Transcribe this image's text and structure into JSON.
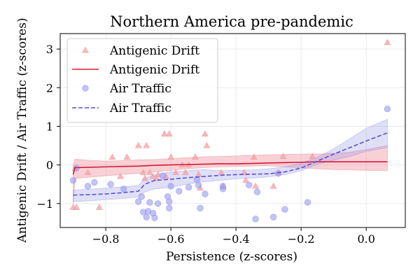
{
  "chart_data": {
    "type": "scatter",
    "title": "Northern America pre-pandemic",
    "xlabel": "Persistence (z-scores)",
    "ylabel": "Antigenic Drift / Air Traffic (z-scores)",
    "xlim": [
      -0.94,
      0.12
    ],
    "ylim": [
      -1.62,
      3.4
    ],
    "x_ticks": [
      -0.8,
      -0.6,
      -0.4,
      -0.2,
      0.0
    ],
    "x_tick_labels": [
      "−0.8",
      "−0.6",
      "−0.4",
      "−0.2",
      "0.0"
    ],
    "y_ticks": [
      -1,
      0,
      1,
      2,
      3
    ],
    "y_tick_labels": [
      "−1",
      "0",
      "1",
      "2",
      "3"
    ],
    "grid": true,
    "legend_position": "upper-left",
    "legend": [
      {
        "label": "Antigenic Drift",
        "kind": "triangle-marker"
      },
      {
        "label": "Antigenic Drift",
        "kind": "solid-line"
      },
      {
        "label": "Air Traffic",
        "kind": "circle-marker"
      },
      {
        "label": "Air Traffic",
        "kind": "dashed-line"
      }
    ],
    "colors": {
      "drift_marker": "#f4a0a6",
      "drift_line": "#d7193a",
      "drift_band": "#e8707e",
      "air_marker": "#9b9bf2",
      "air_line": "#5a4fd6",
      "air_band": "#8c8ce6"
    },
    "series": [
      {
        "name": "Antigenic Drift",
        "kind": "scatter",
        "points": [
          [
            -0.9,
            -1.1
          ],
          [
            -0.89,
            -1.1
          ],
          [
            -0.895,
            -0.1
          ],
          [
            -0.855,
            -0.2
          ],
          [
            -0.82,
            -1.1
          ],
          [
            -0.78,
            0.2
          ],
          [
            -0.755,
            -0.3
          ],
          [
            -0.735,
            0.2
          ],
          [
            -0.7,
            0.5
          ],
          [
            -0.685,
            -0.2
          ],
          [
            -0.68,
            -0.35
          ],
          [
            -0.675,
            0.5
          ],
          [
            -0.665,
            -0.2
          ],
          [
            -0.655,
            -0.3
          ],
          [
            -0.645,
            -0.35
          ],
          [
            -0.64,
            -0.25
          ],
          [
            -0.62,
            0.8
          ],
          [
            -0.615,
            -0.3
          ],
          [
            -0.605,
            0.8
          ],
          [
            -0.6,
            0.2
          ],
          [
            -0.585,
            -0.2
          ],
          [
            -0.565,
            0.0
          ],
          [
            -0.555,
            -0.2
          ],
          [
            -0.545,
            0.0
          ],
          [
            -0.525,
            0.2
          ],
          [
            -0.515,
            -0.25
          ],
          [
            -0.51,
            -0.6
          ],
          [
            -0.495,
            0.8
          ],
          [
            -0.49,
            0.5
          ],
          [
            -0.445,
            -0.2
          ],
          [
            -0.44,
            -0.55
          ],
          [
            -0.375,
            -0.2
          ],
          [
            -0.37,
            -0.4
          ],
          [
            -0.345,
            0.2
          ],
          [
            -0.34,
            -0.55
          ],
          [
            -0.285,
            -0.55
          ],
          [
            -0.27,
            -0.2
          ],
          [
            -0.255,
            0.22
          ],
          [
            -0.165,
            0.22
          ],
          [
            0.065,
            3.17
          ]
        ]
      },
      {
        "name": "Antigenic Drift",
        "kind": "trend",
        "x": [
          -0.9,
          -0.895,
          -0.85,
          -0.8,
          -0.75,
          -0.7,
          -0.65,
          -0.6,
          -0.55,
          -0.5,
          -0.45,
          -0.4,
          -0.35,
          -0.3,
          -0.25,
          -0.2,
          -0.15,
          -0.1,
          -0.05,
          0.0,
          0.065
        ],
        "y": [
          -0.25,
          -0.07,
          -0.06,
          -0.05,
          -0.04,
          -0.03,
          -0.01,
          0.0,
          0.01,
          0.02,
          0.03,
          0.03,
          0.04,
          0.05,
          0.06,
          0.07,
          0.08,
          0.08,
          0.08,
          0.08,
          0.08
        ],
        "lower": [
          -1.05,
          -0.35,
          -0.32,
          -0.28,
          -0.25,
          -0.22,
          -0.18,
          -0.14,
          -0.1,
          -0.07,
          -0.05,
          -0.04,
          -0.03,
          -0.02,
          -0.05,
          -0.08,
          -0.1,
          -0.12,
          -0.13,
          -0.14,
          -0.15
        ],
        "upper": [
          0.0,
          0.15,
          0.12,
          0.1,
          0.11,
          0.13,
          0.14,
          0.16,
          0.19,
          0.21,
          0.22,
          0.23,
          0.25,
          0.26,
          0.27,
          0.28,
          0.28,
          0.3,
          0.33,
          0.4,
          0.5
        ]
      },
      {
        "name": "Air Traffic",
        "kind": "scatter",
        "points": [
          [
            -0.9,
            -0.4
          ],
          [
            -0.89,
            -0.08
          ],
          [
            -0.855,
            -0.55
          ],
          [
            -0.835,
            -0.45
          ],
          [
            -0.785,
            -0.5
          ],
          [
            -0.745,
            -0.62
          ],
          [
            -0.7,
            -0.95
          ],
          [
            -0.69,
            -0.82
          ],
          [
            -0.685,
            -1.22
          ],
          [
            -0.675,
            -1.35
          ],
          [
            -0.67,
            -1.2
          ],
          [
            -0.665,
            -0.97
          ],
          [
            -0.655,
            -1.25
          ],
          [
            -0.65,
            -1.37
          ],
          [
            -0.64,
            -1.0
          ],
          [
            -0.625,
            -0.28
          ],
          [
            -0.61,
            -0.82
          ],
          [
            -0.605,
            -0.95
          ],
          [
            -0.605,
            -1.12
          ],
          [
            -0.6,
            -0.55
          ],
          [
            -0.575,
            -0.68
          ],
          [
            -0.545,
            -0.58
          ],
          [
            -0.52,
            -0.38
          ],
          [
            -0.515,
            -0.53
          ],
          [
            -0.51,
            -1.12
          ],
          [
            -0.495,
            -0.75
          ],
          [
            -0.44,
            -0.55
          ],
          [
            -0.44,
            -0.62
          ],
          [
            -0.36,
            -0.52
          ],
          [
            -0.34,
            -1.4
          ],
          [
            -0.335,
            -0.7
          ],
          [
            -0.285,
            -1.35
          ],
          [
            -0.27,
            -0.22
          ],
          [
            -0.25,
            -1.15
          ],
          [
            -0.18,
            -0.97
          ],
          [
            0.065,
            1.45
          ]
        ]
      },
      {
        "name": "Air Traffic",
        "kind": "trend",
        "x": [
          -0.9,
          -0.85,
          -0.8,
          -0.75,
          -0.7,
          -0.68,
          -0.65,
          -0.6,
          -0.55,
          -0.5,
          -0.45,
          -0.4,
          -0.35,
          -0.3,
          -0.25,
          -0.2,
          -0.15,
          -0.1,
          -0.05,
          0.0,
          0.065
        ],
        "y": [
          -0.78,
          -0.77,
          -0.75,
          -0.72,
          -0.68,
          -0.5,
          -0.4,
          -0.37,
          -0.33,
          -0.3,
          -0.27,
          -0.25,
          -0.24,
          -0.23,
          -0.18,
          -0.08,
          0.1,
          0.28,
          0.45,
          0.62,
          0.83
        ],
        "lower": [
          -0.95,
          -0.93,
          -0.9,
          -0.87,
          -0.83,
          -0.7,
          -0.62,
          -0.58,
          -0.5,
          -0.44,
          -0.4,
          -0.36,
          -0.34,
          -0.31,
          -0.25,
          -0.15,
          0.02,
          0.12,
          0.22,
          0.35,
          0.45
        ],
        "upper": [
          -0.65,
          -0.63,
          -0.6,
          -0.57,
          -0.53,
          -0.35,
          -0.25,
          -0.18,
          -0.15,
          -0.12,
          -0.15,
          -0.14,
          -0.13,
          -0.1,
          -0.05,
          0.05,
          0.2,
          0.42,
          0.68,
          0.95,
          1.18
        ]
      }
    ]
  }
}
